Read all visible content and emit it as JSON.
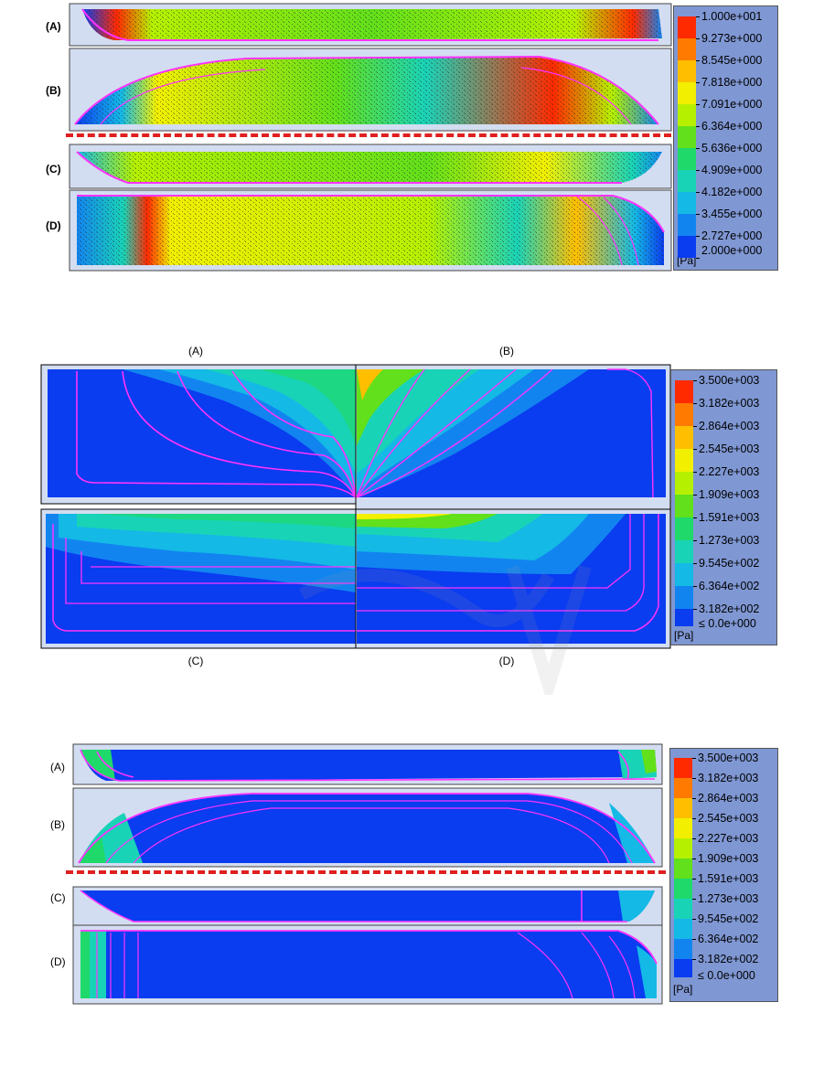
{
  "figure1": {
    "panel_labels": [
      "(A)",
      "(B)",
      "(C)",
      "(D)"
    ],
    "colorbar": {
      "ticks": [
        "1.000e+001",
        "9.273e+000",
        "8.545e+000",
        "7.818e+000",
        "7.091e+000",
        "6.364e+000",
        "5.636e+000",
        "4.909e+000",
        "4.182e+000",
        "3.455e+000",
        "2.727e+000",
        "2.000e+000"
      ],
      "unit": "[Pa]"
    }
  },
  "figure2": {
    "captions_top": [
      "(A)",
      "(B)"
    ],
    "captions_bottom": [
      "(C)",
      "(D)"
    ],
    "colorbar": {
      "ticks": [
        "3.500e+003",
        "3.182e+003",
        "2.864e+003",
        "2.545e+003",
        "2.227e+003",
        "1.909e+003",
        "1.591e+003",
        "1.273e+003",
        "9.545e+002",
        "6.364e+002",
        "3.182e+002",
        "≤ 0.0e+000"
      ],
      "unit": "[Pa]"
    }
  },
  "figure3": {
    "panel_labels": [
      "(A)",
      "(B)",
      "(C)",
      "(D)"
    ],
    "colorbar": {
      "ticks": [
        "3.500e+003",
        "3.182e+003",
        "2.864e+003",
        "2.545e+003",
        "2.227e+003",
        "1.909e+003",
        "1.591e+003",
        "1.273e+003",
        "9.545e+002",
        "6.364e+002",
        "3.182e+002",
        "≤ 0.0e+000"
      ],
      "unit": "[Pa]"
    }
  },
  "colors": {
    "scale": [
      "#ff2a00",
      "#ff7a00",
      "#ffbf00",
      "#f2ef00",
      "#b5f000",
      "#62e01b",
      "#1fd96b",
      "#19d3b7",
      "#14b9e6",
      "#1284f0",
      "#0a3cf0"
    ],
    "contour_line": "#ff33ff",
    "divider": "#e01f1f",
    "colorbar_bg": "#7f97d3"
  }
}
